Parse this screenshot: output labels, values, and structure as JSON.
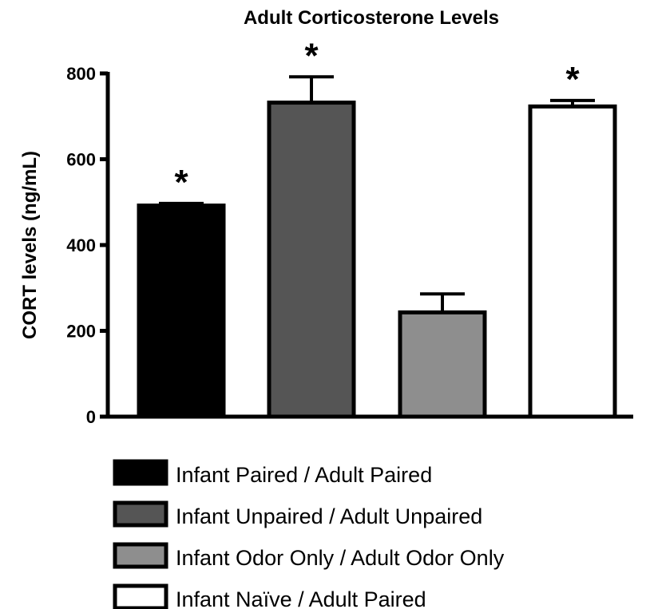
{
  "chart_data": {
    "type": "bar",
    "title": "Adult Corticosterone Levels",
    "xlabel": "",
    "ylabel": "CORT levels (ng/mL)",
    "ylim": [
      0,
      800
    ],
    "yticks": [
      0,
      200,
      400,
      600,
      800
    ],
    "grid": false,
    "legend_position": "bottom",
    "categories": [
      "Infant Paired / Adult Paired",
      "Infant Unpaired / Adult Unpaired",
      "Infant Odor Only / Adult Odor Only",
      "Infant Naïve / Adult Paired"
    ],
    "values": [
      492,
      732,
      243,
      723
    ],
    "errors": [
      5,
      60,
      43,
      14
    ],
    "significance": [
      "*",
      "*",
      "",
      "*"
    ],
    "colors": [
      "#000000",
      "#555555",
      "#8e8e8e",
      "#ffffff"
    ]
  }
}
